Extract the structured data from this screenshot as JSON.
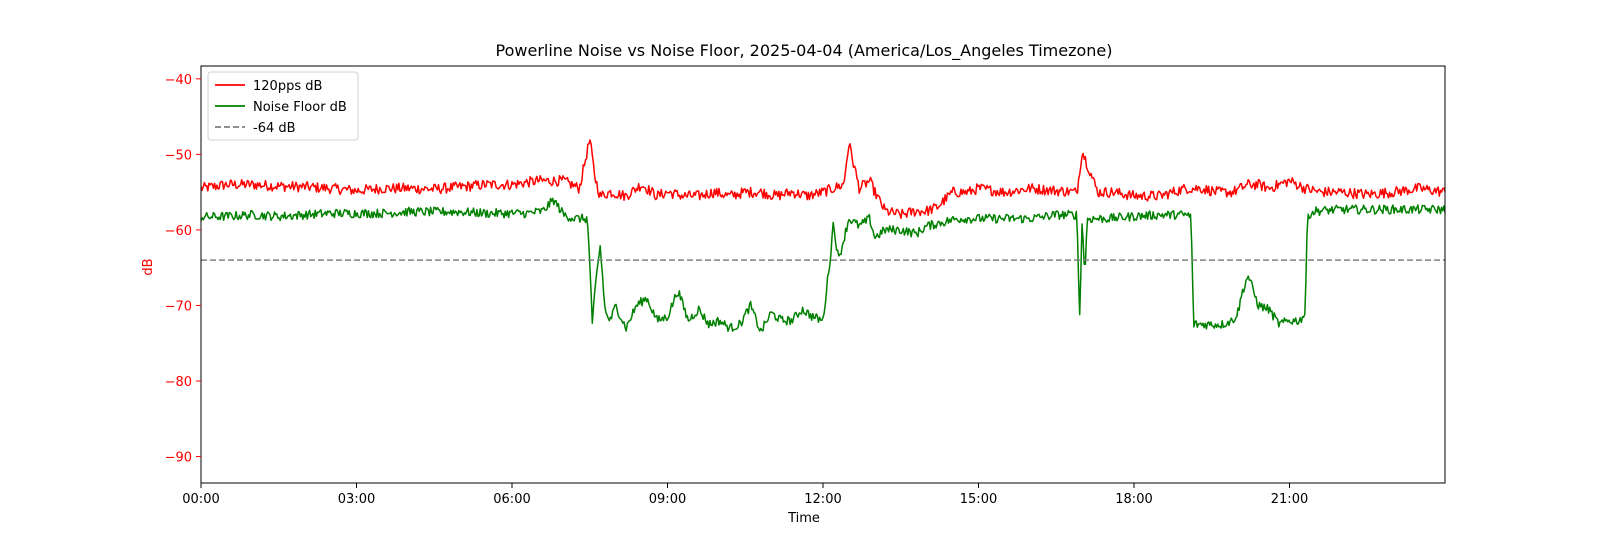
{
  "chart_data": {
    "type": "line",
    "title": "Powerline Noise vs Noise Floor, 2025-04-04 (America/Los_Angeles Timezone)",
    "xlabel": "Time",
    "ylabel": "dB",
    "ylim": [
      -93.5,
      -38.3
    ],
    "xlim_hours": [
      0,
      24
    ],
    "x_ticks": [
      "00:00",
      "03:00",
      "06:00",
      "09:00",
      "12:00",
      "15:00",
      "18:00",
      "21:00"
    ],
    "y_ticks": [
      -40,
      -50,
      -60,
      -70,
      -80,
      -90
    ],
    "y_tick_labels": [
      "−40",
      "−50",
      "−60",
      "−70",
      "−80",
      "−90"
    ],
    "grid": false,
    "legend_position": "upper-left",
    "y_axis_color": "#ff0000",
    "reference_line": {
      "name": "-64 dB",
      "value": -64,
      "color": "#808080",
      "style": "dashed"
    },
    "series": [
      {
        "name": "120pps dB",
        "color": "#ff0000",
        "x_hours": [
          0,
          0.5,
          1,
          1.5,
          2,
          2.5,
          3,
          3.5,
          4,
          4.5,
          5,
          5.5,
          6,
          6.5,
          7,
          7.3,
          7.5,
          7.6,
          7.7,
          7.9,
          8.2,
          8.5,
          8.8,
          9.0,
          9.3,
          9.6,
          9.9,
          10.2,
          10.5,
          10.8,
          11.1,
          11.4,
          11.7,
          12.0,
          12.2,
          12.4,
          12.5,
          12.7,
          12.9,
          13.0,
          13.2,
          13.5,
          13.8,
          14.0,
          14.2,
          14.5,
          14.8,
          15.0,
          15.5,
          16.0,
          16.5,
          16.9,
          17.0,
          17.3,
          17.6,
          18.0,
          18.5,
          19.0,
          19.3,
          19.6,
          19.9,
          20.2,
          20.4,
          20.6,
          20.8,
          21.0,
          21.3,
          21.6,
          22.0,
          22.5,
          23.0,
          23.5,
          24.0
        ],
        "values": [
          -54.5,
          -54.0,
          -54.0,
          -54.2,
          -54.3,
          -54.5,
          -54.8,
          -54.5,
          -54.5,
          -54.6,
          -54.3,
          -54.0,
          -54.0,
          -53.5,
          -53.5,
          -54.5,
          -48.0,
          -53.0,
          -55.5,
          -55.0,
          -55.5,
          -54.0,
          -55.5,
          -55.0,
          -55.5,
          -55.5,
          -55.0,
          -55.5,
          -55.0,
          -55.0,
          -55.5,
          -55.0,
          -55.5,
          -55.0,
          -54.5,
          -54.0,
          -48.5,
          -54.5,
          -53.5,
          -55.0,
          -57.5,
          -58.0,
          -57.5,
          -57.5,
          -57.0,
          -55.0,
          -55.0,
          -54.5,
          -55.0,
          -54.5,
          -54.8,
          -55.0,
          -49.5,
          -55.0,
          -55.0,
          -55.5,
          -55.5,
          -54.5,
          -54.5,
          -55.0,
          -55.0,
          -54.0,
          -54.0,
          -54.5,
          -54.0,
          -53.5,
          -54.5,
          -55.0,
          -55.0,
          -55.3,
          -55.0,
          -54.5,
          -55.0
        ],
        "noise": 0.7
      },
      {
        "name": "Noise Floor dB",
        "color": "#008000",
        "x_hours": [
          0,
          0.5,
          1,
          1.5,
          2,
          2.5,
          3,
          3.5,
          4,
          4.5,
          5,
          5.5,
          6,
          6.3,
          6.6,
          6.8,
          7.0,
          7.2,
          7.45,
          7.5,
          7.55,
          7.6,
          7.7,
          7.8,
          7.9,
          8.0,
          8.2,
          8.4,
          8.6,
          8.8,
          9.0,
          9.2,
          9.4,
          9.6,
          9.8,
          10.0,
          10.2,
          10.4,
          10.6,
          10.8,
          11.0,
          11.2,
          11.4,
          11.6,
          11.8,
          12.0,
          12.15,
          12.2,
          12.3,
          12.5,
          12.7,
          12.9,
          13.0,
          13.2,
          13.5,
          13.8,
          14.0,
          14.3,
          14.6,
          15.0,
          15.5,
          16.0,
          16.5,
          16.9,
          16.95,
          17.0,
          17.05,
          17.1,
          17.5,
          18.0,
          18.5,
          19.0,
          19.1,
          19.15,
          19.3,
          19.5,
          19.7,
          19.9,
          20.0,
          20.1,
          20.2,
          20.4,
          20.6,
          20.8,
          21.0,
          21.2,
          21.3,
          21.35,
          21.5,
          22.0,
          22.5,
          23.0,
          23.5,
          24.0
        ],
        "values": [
          -58.3,
          -58.2,
          -58.0,
          -58.2,
          -58.0,
          -57.8,
          -57.8,
          -57.8,
          -57.6,
          -57.6,
          -57.6,
          -57.8,
          -57.8,
          -57.8,
          -57.5,
          -56.0,
          -58.0,
          -58.5,
          -58.5,
          -64.0,
          -73.0,
          -68.0,
          -62.0,
          -71.0,
          -72.0,
          -70.0,
          -73.0,
          -70.0,
          -69.0,
          -72.0,
          -71.5,
          -68.0,
          -72.0,
          -70.5,
          -72.5,
          -72.0,
          -73.0,
          -72.5,
          -70.0,
          -73.5,
          -71.0,
          -72.0,
          -72.0,
          -70.5,
          -71.5,
          -72.0,
          -63.0,
          -59.0,
          -64.0,
          -58.5,
          -59.5,
          -58.5,
          -61.0,
          -60.0,
          -60.0,
          -60.5,
          -59.5,
          -59.0,
          -58.5,
          -58.5,
          -58.5,
          -58.5,
          -58.0,
          -58.0,
          -72.0,
          -58.5,
          -66.0,
          -58.5,
          -58.5,
          -58.2,
          -58.0,
          -58.0,
          -58.2,
          -72.5,
          -72.5,
          -72.5,
          -72.5,
          -72.0,
          -71.0,
          -68.0,
          -66.0,
          -70.0,
          -70.5,
          -72.5,
          -72.0,
          -72.0,
          -71.0,
          -58.0,
          -57.5,
          -57.3,
          -57.3,
          -57.3,
          -57.3,
          -57.3
        ],
        "noise": 0.6
      }
    ]
  }
}
